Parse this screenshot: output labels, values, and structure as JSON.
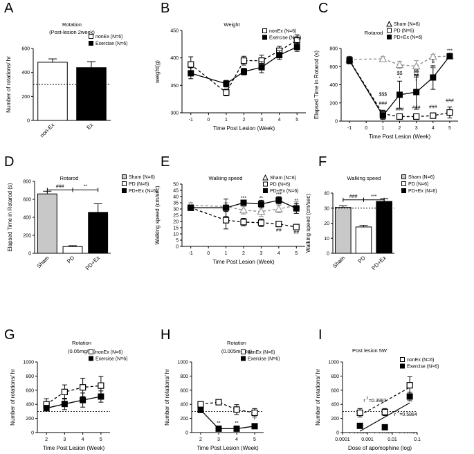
{
  "figure_letters": [
    "A",
    "B",
    "C",
    "D",
    "E",
    "F",
    "G",
    "H",
    "I"
  ],
  "colors": {
    "black": "#000000",
    "sham_gray": "#c8c8c8",
    "white": "#ffffff",
    "sham_line": "#8a8a8a"
  },
  "chart_data": [
    {
      "id": "A",
      "type": "bar",
      "title": "Rotation",
      "subtitle": "(Post-lesion 2week)",
      "ylabel": "Number of rotations/ hr",
      "ylim": [
        0,
        600
      ],
      "yticks": [
        0,
        200,
        400,
        600
      ],
      "reference_line": 300,
      "categories": [
        "non-Ex",
        "Ex"
      ],
      "values": [
        485,
        440
      ],
      "errors": [
        28,
        50
      ],
      "legend": [
        "nonEx (N=6)",
        "Exercise (N=6)"
      ],
      "legend_swatches": [
        "open",
        "filled"
      ],
      "fills": [
        "open",
        "filled"
      ]
    },
    {
      "id": "B",
      "type": "line",
      "title": "Weight",
      "xlabel": "Time Post Lesion (Week)",
      "ylabel": "weight(g)",
      "x": [
        -1,
        0,
        1,
        2,
        3,
        4,
        5
      ],
      "xticks": [
        -1,
        0,
        1,
        2,
        3,
        4,
        5
      ],
      "ylim": [
        300,
        450
      ],
      "yticks": [
        300,
        350,
        400,
        450
      ],
      "legend": [
        "nonEx (N=6)",
        "Exercise (N=6)"
      ],
      "series": [
        {
          "name": "nonEx (N=6)",
          "marker": "open-square",
          "dash": true,
          "x": [
            -1,
            1,
            2,
            3,
            4,
            5
          ],
          "values": [
            388,
            337,
            395,
            395,
            413,
            432
          ],
          "errors": [
            14,
            6,
            8,
            10,
            8,
            10
          ]
        },
        {
          "name": "Exercise (N=6)",
          "marker": "filled-square",
          "dash": false,
          "x": [
            -1,
            1,
            2,
            3,
            4,
            5
          ],
          "values": [
            372,
            353,
            375,
            383,
            405,
            420
          ],
          "errors": [
            10,
            6,
            6,
            10,
            8,
            8
          ]
        }
      ]
    },
    {
      "id": "C",
      "type": "line",
      "title": "Rotarod",
      "xlabel": "Time Post Lesion (Week)",
      "ylabel": "Elapsed Time in Rotarod (s)",
      "x": [
        -1,
        0,
        1,
        2,
        3,
        4,
        5
      ],
      "xticks": [
        -1,
        0,
        1,
        2,
        3,
        4,
        5
      ],
      "ylim": [
        0,
        800
      ],
      "yticks": [
        0,
        200,
        400,
        600,
        800
      ],
      "legend": [
        "Sham (N=6)",
        "PD (N=6)",
        "PD+Ex (N=6)"
      ],
      "series": [
        {
          "name": "Sham (N=6)",
          "marker": "open-triangle",
          "dash": true,
          "gray": true,
          "x": [
            -1,
            1,
            2,
            3,
            4,
            5
          ],
          "values": [
            680,
            685,
            620,
            605,
            710,
            715
          ],
          "errors": [
            30,
            25,
            40,
            60,
            25,
            20
          ]
        },
        {
          "name": "PD (N=6)",
          "marker": "open-square",
          "dash": true,
          "x": [
            -1,
            1,
            2,
            3,
            4,
            5
          ],
          "values": [
            670,
            80,
            50,
            50,
            60,
            95
          ],
          "errors": [
            40,
            40,
            20,
            20,
            20,
            60
          ]
        },
        {
          "name": "PD+Ex (N=6)",
          "marker": "filled-square",
          "dash": false,
          "x": [
            -1,
            1,
            2,
            3,
            4,
            5
          ],
          "values": [
            665,
            60,
            290,
            320,
            480,
            715
          ],
          "errors": [
            30,
            40,
            150,
            190,
            130,
            20
          ]
        }
      ],
      "annotations": [
        {
          "text": "$$$",
          "x": 1,
          "y": 280
        },
        {
          "text": "###",
          "x": 1,
          "y": 180
        },
        {
          "text": "$$",
          "x": 2,
          "y": 510
        },
        {
          "text": "*",
          "x": 2,
          "y": 455
        },
        {
          "text": "###",
          "x": 2,
          "y": 115
        },
        {
          "text": "$$",
          "x": 3,
          "y": 530
        },
        {
          "text": "$$",
          "x": 3,
          "y": 480
        },
        {
          "text": "*",
          "x": 3,
          "y": 425
        },
        {
          "text": "###",
          "x": 3,
          "y": 135
        },
        {
          "text": "$",
          "x": 4,
          "y": 640
        },
        {
          "text": "***",
          "x": 4,
          "y": 565
        },
        {
          "text": "###",
          "x": 4,
          "y": 140
        },
        {
          "text": "***",
          "x": 5,
          "y": 760
        },
        {
          "text": "###",
          "x": 5,
          "y": 210
        }
      ]
    },
    {
      "id": "D",
      "type": "bar",
      "title": "Rotarod",
      "ylabel": "Elapsed Time in Rotarod (s)",
      "ylim": [
        0,
        800
      ],
      "yticks": [
        0,
        200,
        400,
        600,
        800
      ],
      "categories": [
        "Sham",
        "PD",
        "PD+Ex"
      ],
      "values": [
        660,
        75,
        455
      ],
      "errors": [
        30,
        10,
        95
      ],
      "fills": [
        "gray",
        "open",
        "filled"
      ],
      "legend": [
        "Sham (N=6)",
        "PD (N=6)",
        "PD+Ex (N=6)"
      ],
      "legend_swatches": [
        "gray",
        "open",
        "filled"
      ],
      "brackets": [
        {
          "from": 0,
          "to": 1,
          "y": 705,
          "text": "###"
        },
        {
          "from": 1,
          "to": 2,
          "y": 705,
          "text": "**"
        }
      ]
    },
    {
      "id": "E",
      "type": "line",
      "title": "Walking speed",
      "xlabel": "Time Post Lesion (Week)",
      "ylabel": "Walking speed (cm/sec)",
      "x": [
        -1,
        0,
        1,
        2,
        3,
        4,
        5
      ],
      "xticks": [
        -1,
        0,
        1,
        2,
        3,
        4,
        5
      ],
      "ylim": [
        0,
        50
      ],
      "yticks": [
        0,
        5,
        10,
        15,
        20,
        25,
        30,
        35,
        40,
        45,
        50
      ],
      "legend": [
        "Sham (N=6)",
        "PD (N=6)",
        "PD+Ex (N=6)"
      ],
      "series": [
        {
          "name": "Sham (N=6)",
          "marker": "open-triangle",
          "dash": true,
          "gray": true,
          "x": [
            -1,
            1,
            2,
            3,
            4,
            5
          ],
          "values": [
            33,
            32,
            29,
            28,
            30,
            33
          ],
          "errors": [
            2,
            3,
            3,
            4,
            3,
            3
          ]
        },
        {
          "name": "PD (N=6)",
          "marker": "open-square",
          "dash": true,
          "x": [
            -1,
            1,
            2,
            3,
            4,
            5
          ],
          "values": [
            31,
            21,
            19.5,
            19,
            18,
            15.5
          ],
          "errors": [
            2,
            7,
            3,
            3,
            2,
            1
          ]
        },
        {
          "name": "PD+Ex (N=6)",
          "marker": "filled-square",
          "dash": false,
          "x": [
            -1,
            1,
            2,
            3,
            4,
            5
          ],
          "values": [
            31,
            31,
            35,
            34,
            37,
            30.5
          ],
          "errors": [
            2,
            7,
            2,
            3,
            3,
            4
          ]
        }
      ],
      "annotations": [
        {
          "text": "***",
          "x": 2,
          "y": 37.5
        },
        {
          "text": "**",
          "x": 3,
          "y": 37.5
        },
        {
          "text": "***",
          "x": 4,
          "y": 40.5
        },
        {
          "text": "**",
          "x": 5,
          "y": 35.5
        },
        {
          "text": "##",
          "x": 4,
          "y": 12
        },
        {
          "text": "##",
          "x": 5,
          "y": 10
        }
      ]
    },
    {
      "id": "F",
      "type": "bar",
      "title": "Walking speed",
      "ylabel": "Walking speed (cm/sec)",
      "ylim": [
        0,
        40
      ],
      "yticks": [
        0,
        10,
        20,
        30,
        40
      ],
      "reference_line": 30,
      "categories": [
        "Sham",
        "PD",
        "PD+Ex"
      ],
      "values": [
        30.5,
        17.5,
        34.5
      ],
      "errors": [
        1,
        1,
        1.8
      ],
      "fills": [
        "gray",
        "open",
        "filled"
      ],
      "legend": [
        "Sham (N=6)",
        "PD (N=6)",
        "PD+Ex (N=6)"
      ],
      "legend_swatches": [
        "gray",
        "open",
        "filled"
      ],
      "brackets": [
        {
          "from": 0,
          "to": 1,
          "y": 35.5,
          "text": "###"
        },
        {
          "from": 1,
          "to": 2,
          "y": 35.5,
          "text": "***"
        }
      ]
    },
    {
      "id": "G",
      "type": "line",
      "title": "Rotation",
      "subtitle": "(0.05mg/kg)",
      "xlabel": "Time Post Lesion (Week)",
      "ylabel": "Number of rotations/ hr",
      "x": [
        2,
        3,
        4,
        5
      ],
      "xticks": [
        2,
        3,
        4,
        5
      ],
      "xlim": [
        1.5,
        5.5
      ],
      "ylim": [
        0,
        1000
      ],
      "yticks": [
        0,
        200,
        400,
        600,
        800,
        1000
      ],
      "reference_line": 300,
      "legend": [
        "nonEx (N=6)",
        "Exercise (N=6)"
      ],
      "series": [
        {
          "name": "nonEx (N=6)",
          "marker": "open-square",
          "dash": true,
          "x": [
            2,
            3,
            4,
            5
          ],
          "values": [
            400,
            575,
            640,
            665
          ],
          "errors": [
            80,
            100,
            130,
            130
          ]
        },
        {
          "name": "Exercise (N=6)",
          "marker": "filled-square",
          "dash": false,
          "x": [
            2,
            3,
            4,
            5
          ],
          "values": [
            345,
            405,
            460,
            510
          ],
          "errors": [
            40,
            80,
            100,
            80
          ]
        }
      ]
    },
    {
      "id": "H",
      "type": "line",
      "title": "Rotation",
      "subtitle": "(0.005mg/kg)",
      "xlabel": "Time Post Lesion (Week)",
      "ylabel": "Number of rotations/ hr",
      "x": [
        2,
        3,
        4,
        5
      ],
      "xticks": [
        2,
        3,
        4,
        5
      ],
      "xlim": [
        1.5,
        5.5
      ],
      "ylim": [
        0,
        1000
      ],
      "yticks": [
        0,
        200,
        400,
        600,
        800,
        1000
      ],
      "reference_line": 300,
      "legend": [
        "nonEx (N=6)",
        "Exercise (N=6)"
      ],
      "series": [
        {
          "name": "nonEx (N=6)",
          "marker": "open-square",
          "dash": true,
          "x": [
            2,
            3,
            4,
            5
          ],
          "values": [
            400,
            430,
            325,
            280
          ],
          "errors": [
            30,
            20,
            70,
            60
          ]
        },
        {
          "name": "Exercise (N=6)",
          "marker": "filled-square",
          "dash": false,
          "x": [
            2,
            3,
            4,
            5
          ],
          "values": [
            320,
            55,
            55,
            90
          ],
          "errors": [
            20,
            10,
            10,
            20
          ]
        }
      ],
      "annotations": [
        {
          "text": "**",
          "x": 3,
          "y": 115
        },
        {
          "text": "**",
          "x": 4,
          "y": 115
        },
        {
          "text": "*",
          "x": 5,
          "y": 160
        }
      ]
    },
    {
      "id": "I",
      "type": "scatter",
      "title": "Post lesion 5W",
      "xlabel": "Dose of apomophine (log)",
      "ylabel": "Number of rotations/ hr",
      "xscale": "log",
      "xlim": [
        0.0001,
        0.1
      ],
      "xticks": [
        "0.0001",
        "0.001",
        "0.01",
        "0.1"
      ],
      "ylim": [
        0,
        1000
      ],
      "yticks": [
        0,
        200,
        400,
        600,
        800,
        1000
      ],
      "reference_line": 300,
      "legend": [
        "nonEx (N=6)",
        "Exercise (N=6)"
      ],
      "series": [
        {
          "name": "nonEx (N=6)",
          "marker": "open-square",
          "dash": true,
          "x": [
            0.0005,
            0.005,
            0.05
          ],
          "values": [
            280,
            290,
            670
          ],
          "errors": [
            60,
            50,
            120
          ],
          "fit": {
            "x": [
              0.0005,
              0.05
            ],
            "y": [
              245,
              640
            ]
          }
        },
        {
          "name": "Exercise (N=6)",
          "marker": "filled-square",
          "dash": false,
          "x": [
            0.0005,
            0.005,
            0.05
          ],
          "values": [
            95,
            75,
            510
          ],
          "errors": [
            10,
            10,
            60
          ],
          "fit": {
            "x": [
              0.0005,
              0.05
            ],
            "y": [
              20,
              420
            ]
          }
        }
      ],
      "r2_labels": [
        {
          "base": "r",
          "exp": "2",
          "value": "=0.3983",
          "x": 0.0007,
          "y": 430
        },
        {
          "base": "r",
          "exp": "2",
          "value": "=0.5884",
          "x": 0.012,
          "y": 235
        }
      ]
    }
  ]
}
